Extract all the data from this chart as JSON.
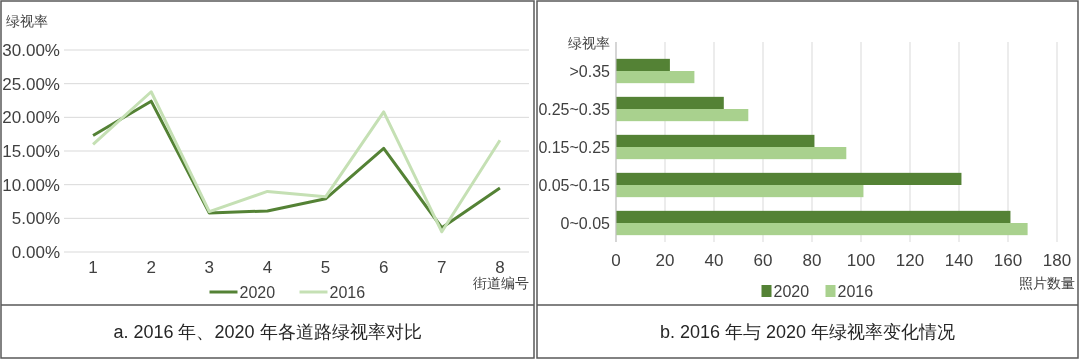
{
  "chart_data": [
    {
      "type": "line",
      "title": "a. 2016 年、2020 年各道路绿视率对比",
      "ylabel": "绿视率",
      "xlabel": "街道编号",
      "categories": [
        "1",
        "2",
        "3",
        "4",
        "5",
        "6",
        "7",
        "8"
      ],
      "series": [
        {
          "name": "2020",
          "color": "#548235",
          "values": [
            17.3,
            22.4,
            5.8,
            6.1,
            7.9,
            15.4,
            3.6,
            9.5
          ]
        },
        {
          "name": "2016",
          "color": "#c5e0b4",
          "values": [
            16.0,
            23.8,
            6.0,
            9.0,
            8.2,
            20.8,
            3.0,
            16.6
          ]
        }
      ],
      "ylim": [
        0,
        30
      ],
      "yticks": [
        {
          "value": 0,
          "label": "0.00%"
        },
        {
          "value": 5,
          "label": "5.00%"
        },
        {
          "value": 10,
          "label": "10.00%"
        },
        {
          "value": 15,
          "label": "15.00%"
        },
        {
          "value": 20,
          "label": "20.00%"
        },
        {
          "value": 25,
          "label": "25.00%"
        },
        {
          "value": 30,
          "label": "30.00%"
        }
      ],
      "grid": "y",
      "legend": "bottom",
      "marker": "none",
      "line_style": "solid"
    },
    {
      "type": "bar",
      "orientation": "horizontal",
      "title": "b. 2016 年与 2020 年绿视率变化情况",
      "ylabel": "绿视率",
      "xlabel": "照片数量",
      "categories": [
        ">0.35",
        "0.25~0.35",
        "0.15~0.25",
        "0.05~0.15",
        "0~0.05"
      ],
      "series": [
        {
          "name": "2020",
          "color": "#548235",
          "values": [
            22,
            44,
            81,
            141,
            161
          ]
        },
        {
          "name": "2016",
          "color": "#a9d18e",
          "values": [
            32,
            54,
            94,
            101,
            168
          ]
        }
      ],
      "xlim": [
        0,
        180
      ],
      "xticks": [
        0,
        20,
        40,
        60,
        80,
        100,
        120,
        140,
        160,
        180
      ],
      "grid": "x",
      "legend": "bottom"
    }
  ]
}
